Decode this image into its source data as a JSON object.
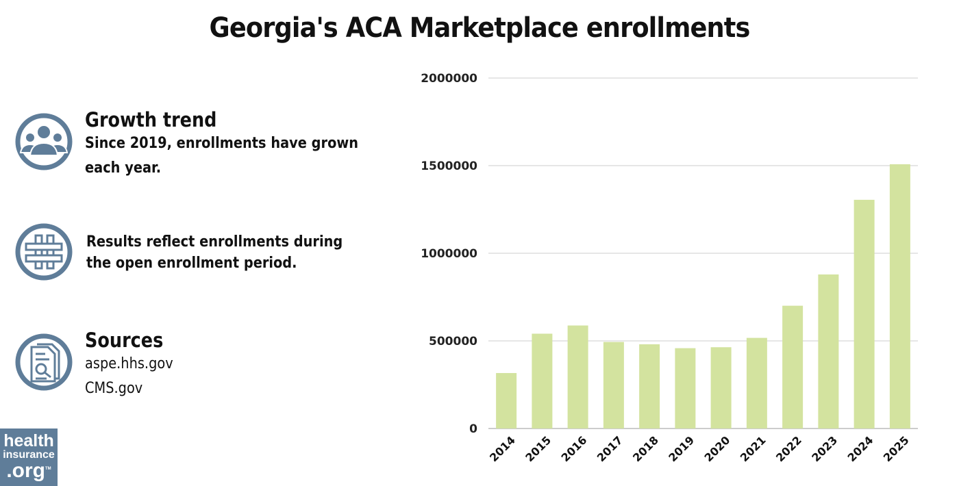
{
  "title": "Georgia's ACA Marketplace enrollments",
  "notes": [
    {
      "icon": "people-group-icon",
      "heading": "Growth trend",
      "text": "Since 2019, enrollments have grown each year."
    },
    {
      "icon": "hashtag-icon",
      "text": "Results reflect enrollments during the open enrollment period."
    },
    {
      "icon": "document-search-icon",
      "heading": "Sources",
      "lines": [
        "aspe.hhs.gov",
        "CMS.gov"
      ]
    }
  ],
  "logo": {
    "line1": "health",
    "line2": "insurance",
    "line3": ".org",
    "tm": "TM"
  },
  "colors": {
    "bar": "#d3e39f",
    "icon": "#5f7d99",
    "grid": "#cccccc"
  },
  "chart_data": {
    "type": "bar",
    "categories": [
      "2014",
      "2015",
      "2016",
      "2017",
      "2018",
      "2019",
      "2020",
      "2021",
      "2022",
      "2023",
      "2024",
      "2025"
    ],
    "values": [
      316543,
      541080,
      587845,
      493880,
      480545,
      458437,
      463910,
      517113,
      700636,
      879084,
      1305114,
      1508000
    ],
    "ylim": [
      0,
      2000000
    ],
    "yticks": [
      "0",
      "500000",
      "1000000",
      "1500000",
      "2000000"
    ],
    "grid": true
  }
}
